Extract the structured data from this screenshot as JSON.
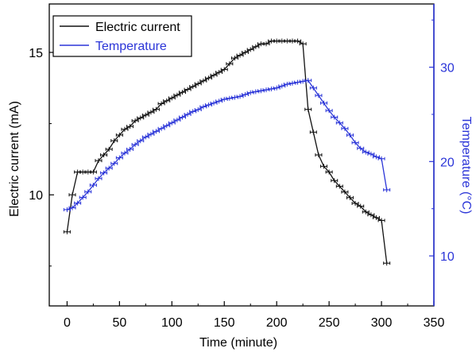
{
  "chart_data": {
    "type": "line",
    "title": "",
    "xlabel": "Time (minute)",
    "ylabel_left": "Electric current (mA)",
    "ylabel_right": "Temperature (°C)",
    "xlim": [
      -17,
      350
    ],
    "ylim_left": [
      6.1,
      16.7
    ],
    "ylim_right": [
      4.7,
      36.7
    ],
    "x_ticks": [
      0,
      50,
      100,
      150,
      200,
      250,
      300,
      350
    ],
    "y_left_ticks": [
      10,
      15
    ],
    "y_right_ticks": [
      10,
      20,
      30
    ],
    "legend_position": "top-left",
    "colors": {
      "current": "#111111",
      "temperature": "#2b35d8"
    },
    "series": [
      {
        "name": "Electric current",
        "axis": "left",
        "x": [
          0,
          5,
          10,
          15,
          20,
          25,
          30,
          35,
          40,
          45,
          50,
          55,
          60,
          65,
          70,
          75,
          80,
          85,
          90,
          95,
          100,
          105,
          110,
          115,
          120,
          125,
          130,
          135,
          140,
          145,
          150,
          155,
          160,
          165,
          170,
          175,
          180,
          185,
          190,
          195,
          200,
          205,
          210,
          215,
          220,
          225,
          230,
          235,
          240,
          245,
          250,
          255,
          260,
          265,
          270,
          275,
          280,
          285,
          290,
          295,
          300,
          305
        ],
        "values": [
          8.7,
          10.0,
          10.8,
          10.8,
          10.8,
          10.8,
          11.2,
          11.4,
          11.6,
          11.9,
          12.1,
          12.3,
          12.4,
          12.6,
          12.7,
          12.8,
          12.9,
          13.0,
          13.2,
          13.3,
          13.4,
          13.5,
          13.6,
          13.7,
          13.8,
          13.9,
          14.0,
          14.1,
          14.2,
          14.3,
          14.4,
          14.6,
          14.8,
          14.9,
          15.0,
          15.1,
          15.2,
          15.3,
          15.3,
          15.4,
          15.4,
          15.4,
          15.4,
          15.4,
          15.4,
          15.3,
          13.0,
          12.2,
          11.4,
          11.0,
          10.8,
          10.5,
          10.3,
          10.1,
          9.9,
          9.7,
          9.6,
          9.4,
          9.3,
          9.2,
          9.1,
          7.6
        ]
      },
      {
        "name": "Temperature",
        "axis": "right",
        "x": [
          0,
          5,
          10,
          15,
          20,
          25,
          30,
          35,
          40,
          45,
          50,
          55,
          60,
          65,
          70,
          75,
          80,
          85,
          90,
          95,
          100,
          105,
          110,
          115,
          120,
          125,
          130,
          135,
          140,
          145,
          150,
          155,
          160,
          165,
          170,
          175,
          180,
          185,
          190,
          195,
          200,
          205,
          210,
          215,
          220,
          225,
          230,
          235,
          240,
          245,
          250,
          255,
          260,
          265,
          270,
          275,
          280,
          285,
          290,
          295,
          300,
          305
        ],
        "values": [
          14.9,
          15.1,
          15.6,
          16.2,
          16.8,
          17.5,
          18.2,
          18.8,
          19.3,
          19.8,
          20.4,
          20.9,
          21.3,
          21.8,
          22.2,
          22.6,
          22.9,
          23.2,
          23.5,
          23.8,
          24.1,
          24.4,
          24.7,
          25.0,
          25.3,
          25.5,
          25.8,
          26.0,
          26.2,
          26.4,
          26.6,
          26.7,
          26.8,
          26.9,
          27.1,
          27.3,
          27.4,
          27.5,
          27.6,
          27.7,
          27.8,
          28.0,
          28.2,
          28.3,
          28.4,
          28.5,
          28.6,
          27.8,
          27.0,
          26.2,
          25.4,
          24.7,
          24.1,
          23.5,
          22.8,
          22.0,
          21.4,
          21.0,
          20.8,
          20.5,
          20.3,
          17.0
        ]
      }
    ]
  }
}
